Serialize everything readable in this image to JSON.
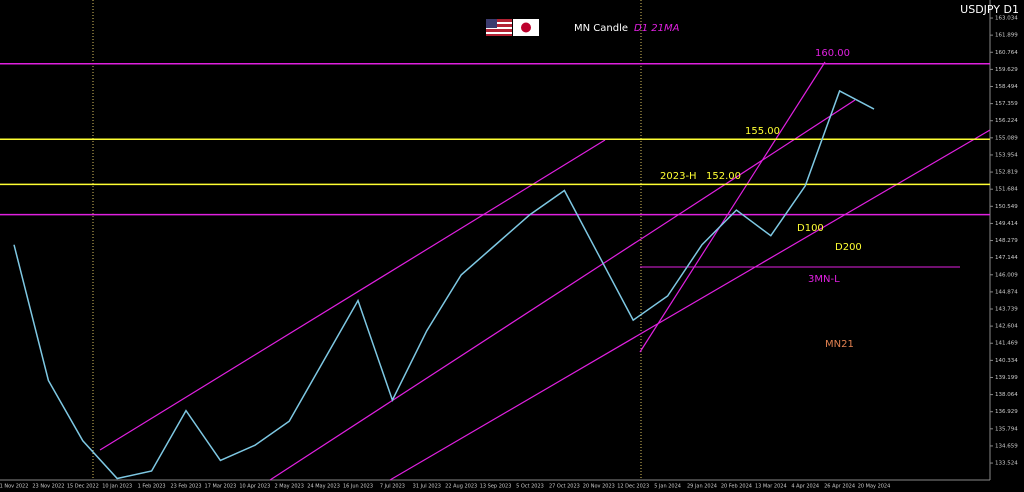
{
  "chart_data": {
    "type": "line",
    "title": "USDJPY D1",
    "legend": [
      "MN Candle",
      "D1 21MA"
    ],
    "legend_colors": [
      "#ffffff",
      "#e020e0"
    ],
    "categories": [
      "1 Nov 2022",
      "23 Nov 2022",
      "15 Dec 2022",
      "10 Jan 2023",
      "1 Feb 2023",
      "23 Feb 2023",
      "17 Mar 2023",
      "10 Apr 2023",
      "2 May 2023",
      "24 May 2023",
      "16 Jun 2023",
      "7 Jul 2023",
      "31 Jul 2023",
      "22 Aug 2023",
      "13 Sep 2023",
      "5 Oct 2023",
      "27 Oct 2023",
      "20 Nov 2023",
      "12 Dec 2023",
      "5 Jan 2024",
      "29 Jan 2024",
      "20 Feb 2024",
      "13 Mar 2024",
      "4 Apr 2024",
      "26 Apr 2024",
      "20 May 2024"
    ],
    "series": [
      {
        "name": "USDJPY",
        "color": "#7ec8e3",
        "values": [
          148.0,
          139.0,
          135.0,
          132.5,
          133.0,
          137.0,
          133.7,
          134.7,
          136.3,
          140.3,
          144.3,
          137.7,
          142.3,
          146.0,
          148.0,
          150.0,
          151.6,
          147.3,
          143.0,
          144.6,
          148.0,
          150.3,
          148.6,
          151.9,
          158.2,
          157.0
        ]
      }
    ],
    "levels": [
      {
        "value": 160,
        "color": "#e020e0"
      },
      {
        "value": 155,
        "color": "#ffff33"
      },
      {
        "value": 152,
        "color": "#ffff33"
      },
      {
        "value": 150,
        "color": "#e020e0"
      }
    ],
    "annotations": [
      {
        "text": "160.00",
        "color": "#e020e0"
      },
      {
        "text": "155.00",
        "color": "#ffff33"
      },
      {
        "text": "2023-H",
        "color": "#ffff33"
      },
      {
        "text": "152.00",
        "color": "#ffff33"
      },
      {
        "text": "D100",
        "color": "#ffff33"
      },
      {
        "text": "D200",
        "color": "#ffff33"
      },
      {
        "text": "3MN-L",
        "color": "#e020e0"
      },
      {
        "text": "MN21",
        "color": "#e08050"
      }
    ],
    "ylim": [
      132.4,
      164.23
    ],
    "yticks": [
      133.524,
      134.659,
      135.794,
      136.929,
      138.064,
      139.199,
      140.334,
      141.469,
      142.604,
      143.739,
      144.874,
      146.009,
      147.144,
      148.279,
      149.414,
      150.549,
      151.684,
      152.819,
      153.954,
      155.089,
      156.224,
      157.359,
      158.494,
      159.629,
      160.764,
      161.899,
      163.034
    ]
  }
}
